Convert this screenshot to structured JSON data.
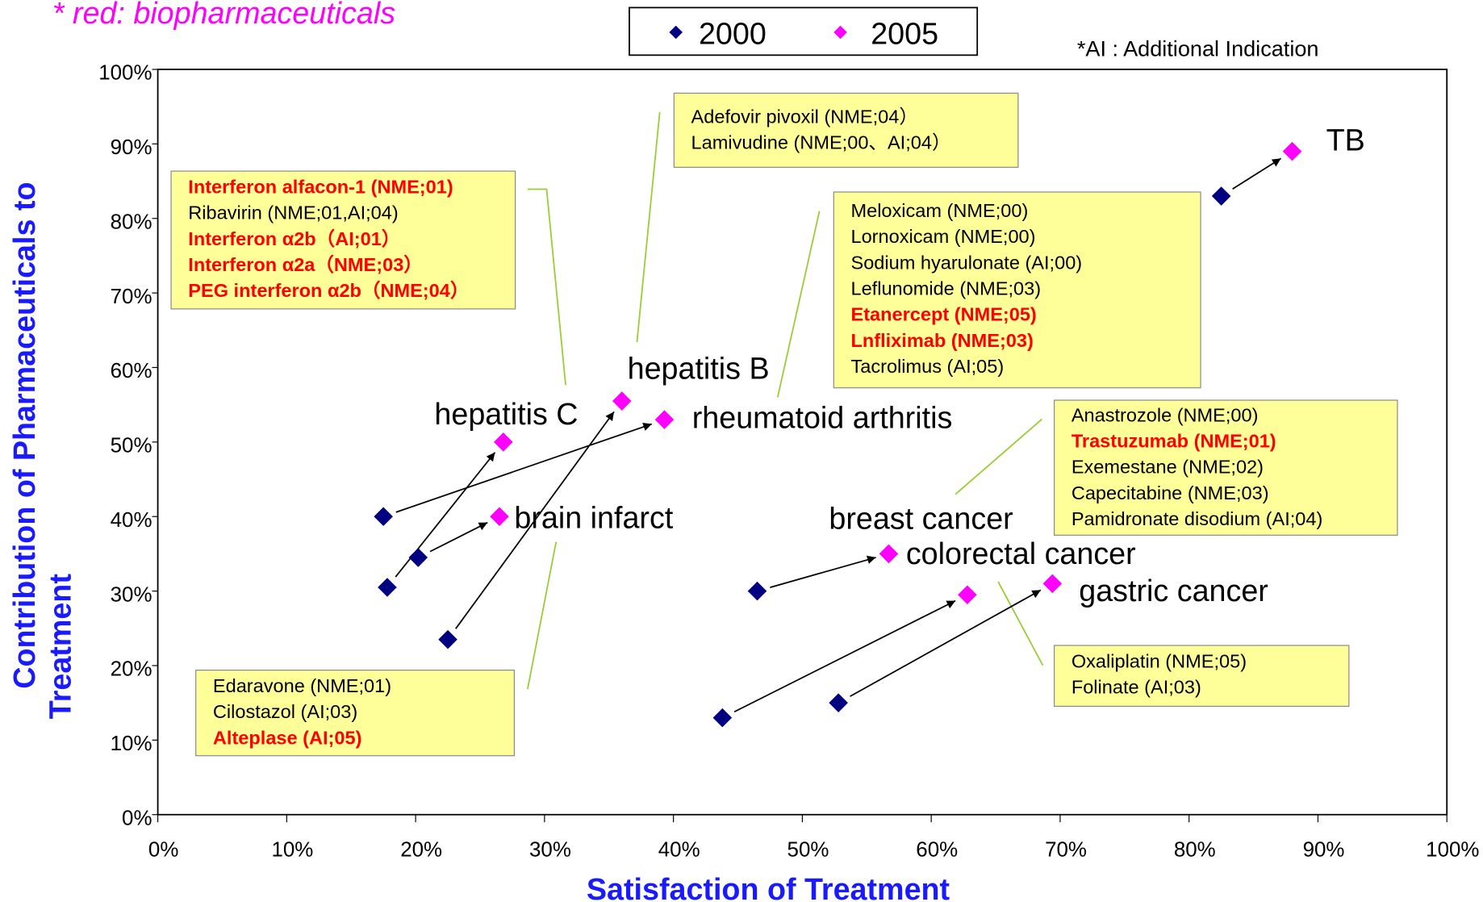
{
  "chart_data": {
    "type": "scatter",
    "title": "* red: biopharmaceuticals",
    "note": "*AI : Additional Indication",
    "xlabel": "Satisfaction of Treatment",
    "ylabel": [
      "Contribution of Pharmaceuticals to",
      "Treatment"
    ],
    "categories": [
      "TB",
      "hepatitis B",
      "hepatitis C",
      "rheumatoid arthritis",
      "brain infarct",
      "breast cancer",
      "colorectal cancer",
      "gastric cancer"
    ],
    "series": [
      {
        "name": "2000",
        "color": "#000080",
        "x": [
          82.5,
          22.5,
          17.8,
          17.5,
          20.2,
          43.8,
          46.5,
          52.8
        ],
        "values": [
          83,
          23.5,
          30.5,
          40,
          34.5,
          13,
          30,
          15
        ]
      },
      {
        "name": "2005",
        "color": "#ff00ff",
        "x": [
          88,
          36,
          26.8,
          39.3,
          26.5,
          62.8,
          56.7,
          69.4
        ],
        "values": [
          89,
          55.5,
          50,
          53,
          40,
          29.5,
          35,
          31
        ]
      }
    ],
    "xlim": [
      0,
      100
    ],
    "ylim": [
      0,
      100
    ],
    "xticks": [
      {
        "value": 0,
        "label": "0%"
      },
      {
        "value": 10,
        "label": "10%"
      },
      {
        "value": 20,
        "label": "20%"
      },
      {
        "value": 30,
        "label": "30%"
      },
      {
        "value": 40,
        "label": "40%"
      },
      {
        "value": 50,
        "label": "50%"
      },
      {
        "value": 60,
        "label": "60%"
      },
      {
        "value": 70,
        "label": "70%"
      },
      {
        "value": 80,
        "label": "80%"
      },
      {
        "value": 90,
        "label": "90%"
      },
      {
        "value": 100,
        "label": "100%"
      }
    ],
    "yticks": [
      {
        "value": 0,
        "label": "0%"
      },
      {
        "value": 10,
        "label": "10%"
      },
      {
        "value": 20,
        "label": "20%"
      },
      {
        "value": 30,
        "label": "30%"
      },
      {
        "value": 40,
        "label": "40%"
      },
      {
        "value": 50,
        "label": "50%"
      },
      {
        "value": 60,
        "label": "60%"
      },
      {
        "value": 70,
        "label": "70%"
      },
      {
        "value": 80,
        "label": "80%"
      },
      {
        "value": 90,
        "label": "90%"
      },
      {
        "value": 100,
        "label": "100%"
      }
    ],
    "notes": [
      {
        "lines": [
          "Interferon alfacon-1 (NME;01)",
          "Ribavirin (NME;01,AI;04)",
          "Interferon α2b（AI;01）",
          "Interferon α2a（NME;03）",
          "PEG interferon α2b（NME;04）"
        ],
        "red": [
          0,
          2,
          3,
          4
        ]
      },
      {
        "lines": [
          "Adefovir pivoxil (NME;04）",
          "Lamivudine (NME;00、AI;04）"
        ],
        "red": []
      },
      {
        "lines": [
          "Meloxicam (NME;00)",
          "Lornoxicam (NME;00)",
          "Sodium hyarulonate (AI;00)",
          "Leflunomide (NME;03)",
          "Etanercept (NME;05)",
          "Lnfliximab (NME;03)",
          "Tacrolimus (AI;05)"
        ],
        "red": [
          4,
          5
        ]
      },
      {
        "lines": [
          "Anastrozole (NME;00)",
          "Trastuzumab (NME;01)",
          "Exemestane (NME;02)",
          "Capecitabine (NME;03)",
          "Pamidronate disodium (AI;04)"
        ],
        "red": [
          1
        ]
      },
      {
        "lines": [
          "Oxaliplatin (NME;05)",
          "Folinate (AI;03)"
        ],
        "red": []
      },
      {
        "lines": [
          "Edaravone (NME;01)",
          "Cilostazol (AI;03)",
          "Alteplase (AI;05)"
        ],
        "red": [
          2
        ]
      }
    ]
  }
}
